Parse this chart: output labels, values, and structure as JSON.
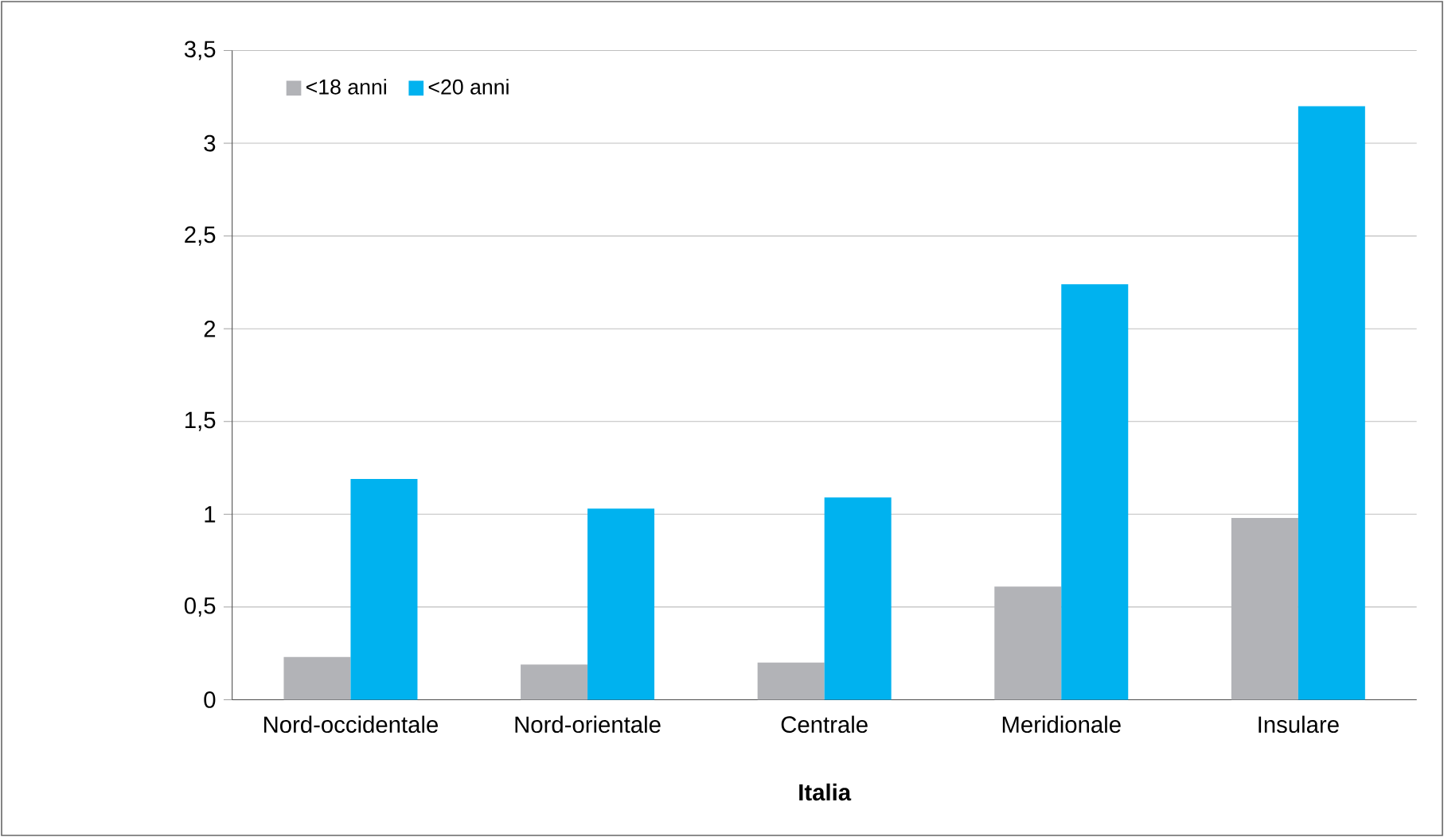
{
  "chart_data": {
    "type": "bar",
    "xlabel": "Italia",
    "categories": [
      "Nord-occidentale",
      "Nord-orientale",
      "Centrale",
      "Meridionale",
      "Insulare"
    ],
    "series": [
      {
        "name": "<18 anni",
        "color": "#b2b3b7",
        "values": [
          0.23,
          0.19,
          0.2,
          0.61,
          0.98
        ]
      },
      {
        "name": "<20 anni",
        "color": "#00b2ef",
        "values": [
          1.19,
          1.03,
          1.09,
          2.24,
          3.2
        ]
      }
    ],
    "ylim": [
      0,
      3.5
    ],
    "yticks": [
      0,
      {
        "value": 0.5,
        "label": "0,5"
      },
      1,
      {
        "value": 1.5,
        "label": "1,5"
      },
      2,
      {
        "value": 2.5,
        "label": "2,5"
      },
      3,
      {
        "value": 3.5,
        "label": "3,5"
      }
    ],
    "grid": "y",
    "legend": "top left"
  }
}
